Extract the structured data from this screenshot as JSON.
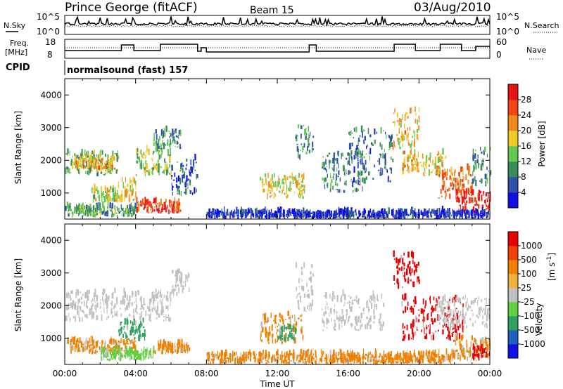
{
  "header": {
    "station": "Prince George (fitACF)",
    "beam": "Beam 15",
    "date": "03/Aug/2010"
  },
  "noise_panel": {
    "left_label": "N.Sky",
    "right_label": "N.Search",
    "left_ticks": [
      "10^5",
      "10^0"
    ],
    "right_ticks": [
      "10^5",
      "10^0"
    ]
  },
  "freq_panel": {
    "left_label_line1": "Freq.",
    "left_label_line2": "[MHz]",
    "right_label": "Nave",
    "left_ticks": [
      "18",
      "8"
    ],
    "right_ticks": [
      "60",
      "0"
    ]
  },
  "cpid": {
    "label": "CPID",
    "value": "normalsound (fast) 157"
  },
  "colors": {
    "power_scale": [
      "#1010e6",
      "#2f52a8",
      "#3a8c5a",
      "#64c850",
      "#f0c828",
      "#f08a1e",
      "#f04614",
      "#e61414"
    ],
    "velocity_scale": [
      "#e60000",
      "#f04000",
      "#f08000",
      "#f0b040",
      "#c0c0c0",
      "#60d040",
      "#30a060",
      "#2060c0",
      "#1010e6"
    ],
    "ground_scatter": "#909090"
  },
  "chart_data": [
    {
      "type": "heatmap",
      "quantity": "power",
      "xlabel": "",
      "ylabel": "Slant Range [km]",
      "x_ticks": [
        "00:00",
        "04:00",
        "08:00",
        "12:00",
        "16:00",
        "20:00",
        "00:00"
      ],
      "xlim_hours": [
        0,
        24
      ],
      "ylim": [
        200,
        4500
      ],
      "y_ticks": [
        1000,
        2000,
        3000,
        4000
      ],
      "colorbar_label": "Power [dB]",
      "colorbar_ticks": [
        "4",
        "8",
        "12",
        "16",
        "20",
        "24",
        "28"
      ],
      "colorbar_range": [
        0,
        30
      ],
      "regions": [
        {
          "t0": 0.0,
          "t1": 3.0,
          "r0": 1500,
          "r1": 2200,
          "level": 0.4
        },
        {
          "t0": 0.5,
          "t1": 2.8,
          "r0": 1700,
          "r1": 2000,
          "level": 0.65
        },
        {
          "t0": 3.0,
          "t1": 4.0,
          "r0": 700,
          "r1": 1400,
          "level": 0.55
        },
        {
          "t0": 4.0,
          "t1": 6.0,
          "r0": 1500,
          "r1": 2300,
          "level": 0.45
        },
        {
          "t0": 5.0,
          "t1": 6.5,
          "r0": 2300,
          "r1": 2900,
          "level": 0.3
        },
        {
          "t0": 1.5,
          "t1": 3.0,
          "r0": 700,
          "r1": 1100,
          "level": 0.5
        },
        {
          "t0": 4.0,
          "t1": 6.5,
          "r0": 350,
          "r1": 700,
          "level": 0.85
        },
        {
          "t0": 0.0,
          "t1": 4.0,
          "r0": 250,
          "r1": 550,
          "level": 0.35
        },
        {
          "t0": 6.0,
          "t1": 7.5,
          "r0": 900,
          "r1": 2000,
          "level": 0.2
        },
        {
          "t0": 11.0,
          "t1": 13.5,
          "r0": 800,
          "r1": 1500,
          "level": 0.55
        },
        {
          "t0": 13.0,
          "t1": 14.0,
          "r0": 2000,
          "r1": 3100,
          "level": 0.3
        },
        {
          "t0": 14.5,
          "t1": 17.0,
          "r0": 1000,
          "r1": 2200,
          "level": 0.3
        },
        {
          "t0": 16.0,
          "t1": 18.5,
          "r0": 1300,
          "r1": 2900,
          "level": 0.25
        },
        {
          "t0": 18.5,
          "t1": 20.0,
          "r0": 2300,
          "r1": 3500,
          "level": 0.6
        },
        {
          "t0": 19.0,
          "t1": 21.5,
          "r0": 1500,
          "r1": 2200,
          "level": 0.6
        },
        {
          "t0": 21.0,
          "t1": 23.0,
          "r0": 800,
          "r1": 1700,
          "level": 0.75
        },
        {
          "t0": 22.0,
          "t1": 24.0,
          "r0": 300,
          "r1": 1000,
          "level": 0.95
        },
        {
          "t0": 23.0,
          "t1": 24.0,
          "r0": 1200,
          "r1": 2300,
          "level": 0.3
        },
        {
          "t0": 8.0,
          "t1": 24.0,
          "r0": 200,
          "r1": 400,
          "level": 0.1
        }
      ]
    },
    {
      "type": "heatmap",
      "quantity": "velocity",
      "xlabel": "Time UT",
      "ylabel": "Slant Range [km]",
      "x_ticks": [
        "00:00",
        "04:00",
        "08:00",
        "12:00",
        "16:00",
        "20:00",
        "00:00"
      ],
      "xlim_hours": [
        0,
        24
      ],
      "ylim": [
        200,
        4500
      ],
      "y_ticks": [
        1000,
        2000,
        3000,
        4000
      ],
      "colorbar_label": "Velocity",
      "colorbar_unit": "[m s",
      "colorbar_unit_exp": "-1",
      "colorbar_unit_close": "]",
      "colorbar_ticks": [
        "1000",
        "500",
        "100",
        "25",
        "-25",
        "-100",
        "-500",
        "-1000"
      ],
      "regions": [
        {
          "t0": 0.0,
          "t1": 6.0,
          "r0": 1500,
          "r1": 2400,
          "vel": "gray"
        },
        {
          "t0": 3.0,
          "t1": 4.5,
          "r0": 900,
          "r1": 1500,
          "vel": "green"
        },
        {
          "t0": 0.0,
          "t1": 4.0,
          "r0": 500,
          "r1": 900,
          "vel": "orange"
        },
        {
          "t0": 2.0,
          "t1": 5.0,
          "r0": 300,
          "r1": 600,
          "vel": "lightgreen"
        },
        {
          "t0": 5.0,
          "t1": 7.0,
          "r0": 500,
          "r1": 800,
          "vel": "orange"
        },
        {
          "t0": 6.0,
          "t1": 7.0,
          "r0": 2300,
          "r1": 3000,
          "vel": "gray"
        },
        {
          "t0": 11.0,
          "t1": 13.5,
          "r0": 800,
          "r1": 1700,
          "vel": "orange"
        },
        {
          "t0": 12.0,
          "t1": 13.0,
          "r0": 900,
          "r1": 1300,
          "vel": "green"
        },
        {
          "t0": 13.0,
          "t1": 14.0,
          "r0": 1800,
          "r1": 3200,
          "vel": "gray"
        },
        {
          "t0": 14.5,
          "t1": 18.0,
          "r0": 1200,
          "r1": 2300,
          "vel": "gray"
        },
        {
          "t0": 18.5,
          "t1": 20.0,
          "r0": 2500,
          "r1": 3600,
          "vel": "red"
        },
        {
          "t0": 19.0,
          "t1": 22.5,
          "r0": 900,
          "r1": 2200,
          "vel": "red"
        },
        {
          "t0": 21.0,
          "t1": 24.0,
          "r0": 1300,
          "r1": 2200,
          "vel": "gray"
        },
        {
          "t0": 22.0,
          "t1": 24.0,
          "r0": 300,
          "r1": 1000,
          "vel": "orange"
        },
        {
          "t0": 23.0,
          "t1": 24.0,
          "r0": 300,
          "r1": 700,
          "vel": "red"
        },
        {
          "t0": 8.0,
          "t1": 22.0,
          "r0": 200,
          "r1": 500,
          "vel": "orange"
        }
      ]
    }
  ]
}
